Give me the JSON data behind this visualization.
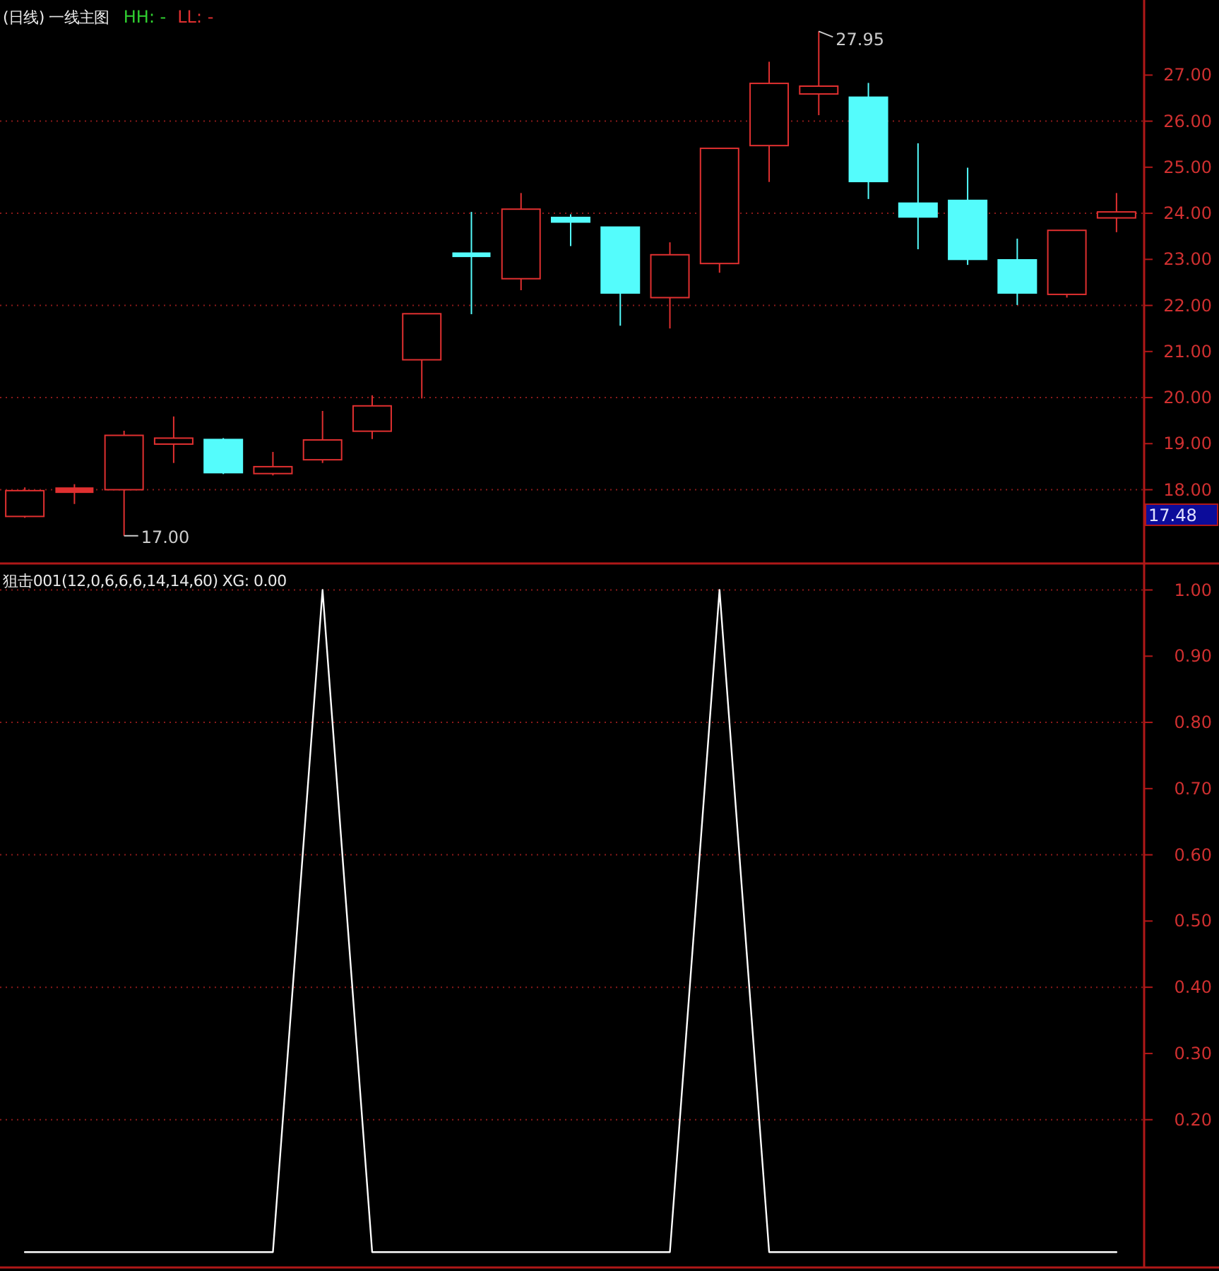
{
  "chart_data": [
    {
      "type": "candlestick",
      "title": "(日线) 一线主图",
      "categories": [
        null,
        null,
        null,
        null,
        null,
        null,
        null,
        null,
        null,
        null,
        null,
        null,
        null,
        null,
        null,
        null,
        null,
        null,
        null,
        null,
        null,
        null,
        null
      ],
      "ohlc": [
        [
          17.42,
          18.05,
          17.39,
          17.98
        ],
        [
          17.96,
          18.12,
          17.69,
          18.02
        ],
        [
          18.0,
          19.28,
          17.0,
          19.18
        ],
        [
          18.99,
          19.59,
          18.58,
          19.12
        ],
        [
          19.09,
          19.12,
          18.34,
          18.37
        ],
        [
          18.35,
          18.82,
          18.31,
          18.5
        ],
        [
          18.65,
          19.71,
          18.58,
          19.08
        ],
        [
          19.27,
          20.05,
          19.1,
          19.82
        ],
        [
          20.82,
          21.82,
          19.98,
          21.82
        ],
        [
          23.12,
          24.03,
          21.81,
          23.08
        ],
        [
          22.58,
          24.44,
          22.33,
          24.09
        ],
        [
          23.91,
          23.98,
          23.29,
          23.81
        ],
        [
          23.7,
          23.7,
          21.56,
          22.27
        ],
        [
          22.17,
          23.37,
          21.5,
          23.1
        ],
        [
          22.91,
          25.41,
          22.71,
          25.41
        ],
        [
          25.47,
          27.29,
          24.68,
          26.82
        ],
        [
          26.59,
          27.95,
          26.13,
          26.76
        ],
        [
          26.52,
          26.83,
          24.31,
          24.69
        ],
        [
          24.22,
          25.52,
          23.22,
          23.92
        ],
        [
          24.28,
          24.99,
          22.88,
          23.0
        ],
        [
          22.99,
          23.45,
          22.01,
          22.27
        ],
        [
          22.24,
          23.63,
          22.17,
          23.63
        ],
        [
          23.9,
          24.44,
          23.59,
          24.03
        ]
      ],
      "colors": [
        "#e03030",
        "#e03030",
        "#e03030",
        "#e03030",
        "#54fcfc",
        "#e03030",
        "#e03030",
        "#e03030",
        "#e03030",
        "#54fcfc",
        "#e03030",
        "#54fcfc",
        "#54fcfc",
        "#e03030",
        "#e03030",
        "#e03030",
        "#e03030",
        "#54fcfc",
        "#54fcfc",
        "#54fcfc",
        "#54fcfc",
        "#e03030",
        "#e03030"
      ],
      "ylim": [
        16.46,
        28.63
      ],
      "yticks": [
        {
          "value": 18,
          "label": "18.00"
        },
        {
          "value": 19,
          "label": "19.00"
        },
        {
          "value": 20,
          "label": "20.00"
        },
        {
          "value": 21,
          "label": "21.00"
        },
        {
          "value": 22,
          "label": "22.00"
        },
        {
          "value": 23,
          "label": "23.00"
        },
        {
          "value": 24,
          "label": "24.00"
        },
        {
          "value": 25,
          "label": "25.00"
        },
        {
          "value": 26,
          "label": "26.00"
        },
        {
          "value": 27,
          "label": "27.00"
        }
      ],
      "grid": "y",
      "tick_labels": "y",
      "annotations": [
        "HH: -",
        "LL: -",
        "27.95",
        "17.00",
        "17.48"
      ]
    },
    {
      "type": "line",
      "title": "狙击001(12,0,6,6,6,14,14,60) XG: 0.00",
      "categories": [
        null,
        null,
        null,
        null,
        null,
        null,
        null,
        null,
        null,
        null,
        null,
        null,
        null,
        null,
        null,
        null,
        null,
        null,
        null,
        null,
        null,
        null,
        null
      ],
      "series": [
        {
          "color": "#ffffff",
          "values": [
            0,
            0,
            0,
            0,
            0,
            0,
            1,
            0,
            0,
            0,
            0,
            0,
            0,
            0,
            1,
            0,
            0,
            0,
            0,
            0,
            0,
            0,
            0
          ]
        }
      ],
      "ylim": [
        -0.02,
        1.04
      ],
      "yticks": [
        {
          "value": 0.2,
          "label": "0.20"
        },
        {
          "value": 0.3,
          "label": "0.30"
        },
        {
          "value": 0.4,
          "label": "0.40"
        },
        {
          "value": 0.5,
          "label": "0.50"
        },
        {
          "value": 0.6,
          "label": "0.60"
        },
        {
          "value": 0.7,
          "label": "0.70"
        },
        {
          "value": 0.8,
          "label": "0.80"
        },
        {
          "value": 0.9,
          "label": "0.90"
        },
        {
          "value": 1.0,
          "label": "1.00"
        }
      ],
      "grid": "y",
      "tick_labels": "y",
      "marker": "none",
      "line_style": "solid"
    }
  ]
}
